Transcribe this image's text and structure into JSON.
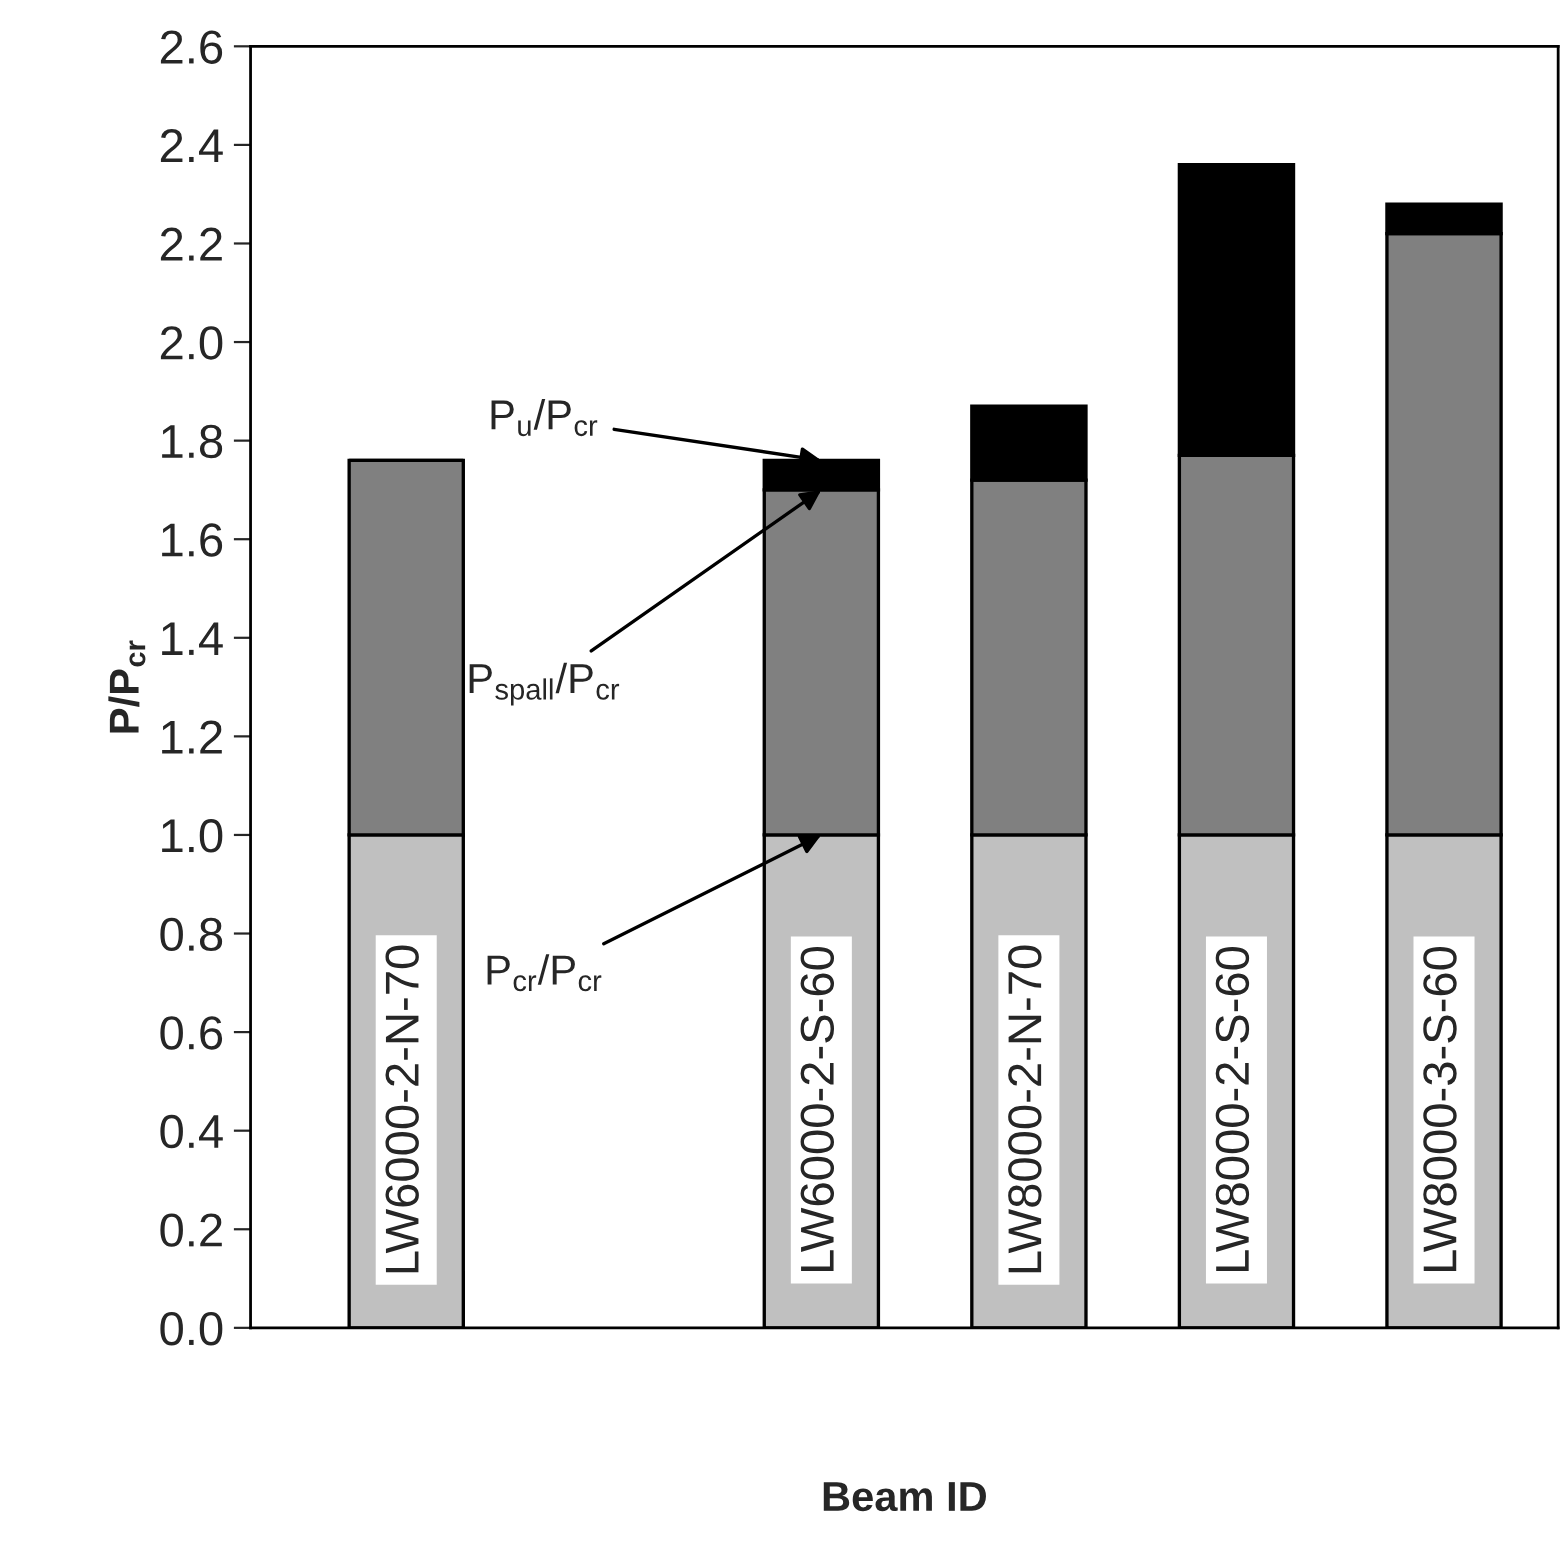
{
  "chart_data": {
    "type": "bar",
    "stacked": true,
    "xlabel": "Beam ID",
    "ylabel": "P/P$_{cr}$",
    "categories": [
      "LW6000-2-N-70",
      null,
      "LW6000-2-S-60",
      "LW8000-2-N-70",
      "LW8000-2-S-60",
      "LW8000-3-S-60"
    ],
    "series": [
      {
        "color": "#c0c0c0",
        "values": [
          1.0,
          null,
          1.0,
          1.0,
          1.0,
          1.0
        ]
      },
      {
        "color": "#808080",
        "values": [
          0.76,
          null,
          0.7,
          0.72,
          0.77,
          1.22
        ]
      },
      {
        "color": "#000000",
        "values": [
          0.0,
          null,
          0.06,
          0.15,
          0.59,
          0.06
        ]
      }
    ],
    "ylim": [
      0,
      2.6
    ],
    "yticks": [
      {
        "value": 0,
        "label": "0.0"
      },
      {
        "value": 0.2,
        "label": "0.2"
      },
      {
        "value": 0.4,
        "label": "0.4"
      },
      {
        "value": 0.6,
        "label": "0.6"
      },
      {
        "value": 0.8,
        "label": "0.8"
      },
      {
        "value": 1.0,
        "label": "1.0"
      },
      {
        "value": 1.2,
        "label": "1.2"
      },
      {
        "value": 1.4,
        "label": "1.4"
      },
      {
        "value": 1.6,
        "label": "1.6"
      },
      {
        "value": 1.8,
        "label": "1.8"
      },
      {
        "value": 2.0,
        "label": "2.0"
      },
      {
        "value": 2.2,
        "label": "2.2"
      },
      {
        "value": 2.4,
        "label": "2.4"
      },
      {
        "value": 2.6,
        "label": "2.6"
      }
    ],
    "annotations": [
      {
        "text": "P$_{u}$/P$_{cr}$",
        "x": "LW6000-2-S-60",
        "y": 1.76
      },
      {
        "text": "P$_{spall}$/P$_{cr}$",
        "x": "LW6000-2-S-60",
        "y": 1.7
      },
      {
        "text": "P$_{cr}$/P$_{cr}$",
        "x": "LW6000-2-S-60",
        "y": 1.0
      }
    ],
    "grid": false,
    "legend": false
  }
}
